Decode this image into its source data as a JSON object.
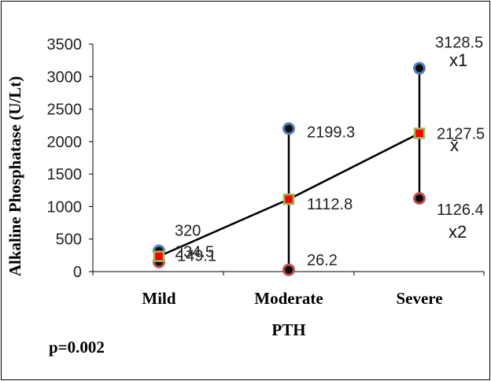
{
  "chart_data": {
    "type": "line",
    "xlabel": "PTH",
    "ylabel": "Alkaline Phosphatase (U/Lt)",
    "categories": [
      "Mild",
      "Moderate",
      "Severe"
    ],
    "ylim": [
      0,
      3500
    ],
    "yticks": [
      0,
      500,
      1000,
      1500,
      2000,
      2500,
      3000,
      3500
    ],
    "series": [
      {
        "name": "x1",
        "values": [
          320,
          2199.3,
          3128.5
        ],
        "labels": [
          "320",
          "2199.3",
          "3128.5"
        ],
        "marker": "circle",
        "fill": "#0a0a0a",
        "edge": "#4f81bd"
      },
      {
        "name": "x̄",
        "values": [
          234.5,
          1112.8,
          2127.5
        ],
        "labels": [
          "234.5",
          "1112.8",
          "2127.5"
        ],
        "marker": "square",
        "fill": "#ff0000",
        "edge": "#9bbb59",
        "connected": true
      },
      {
        "name": "x2",
        "values": [
          149.1,
          26.2,
          1126.4
        ],
        "labels": [
          "149.1",
          "26.2",
          "1126.4"
        ],
        "marker": "circle",
        "fill": "#0a0a0a",
        "edge": "#c0504d"
      }
    ],
    "annotation": "p=0.002",
    "grid": false
  }
}
